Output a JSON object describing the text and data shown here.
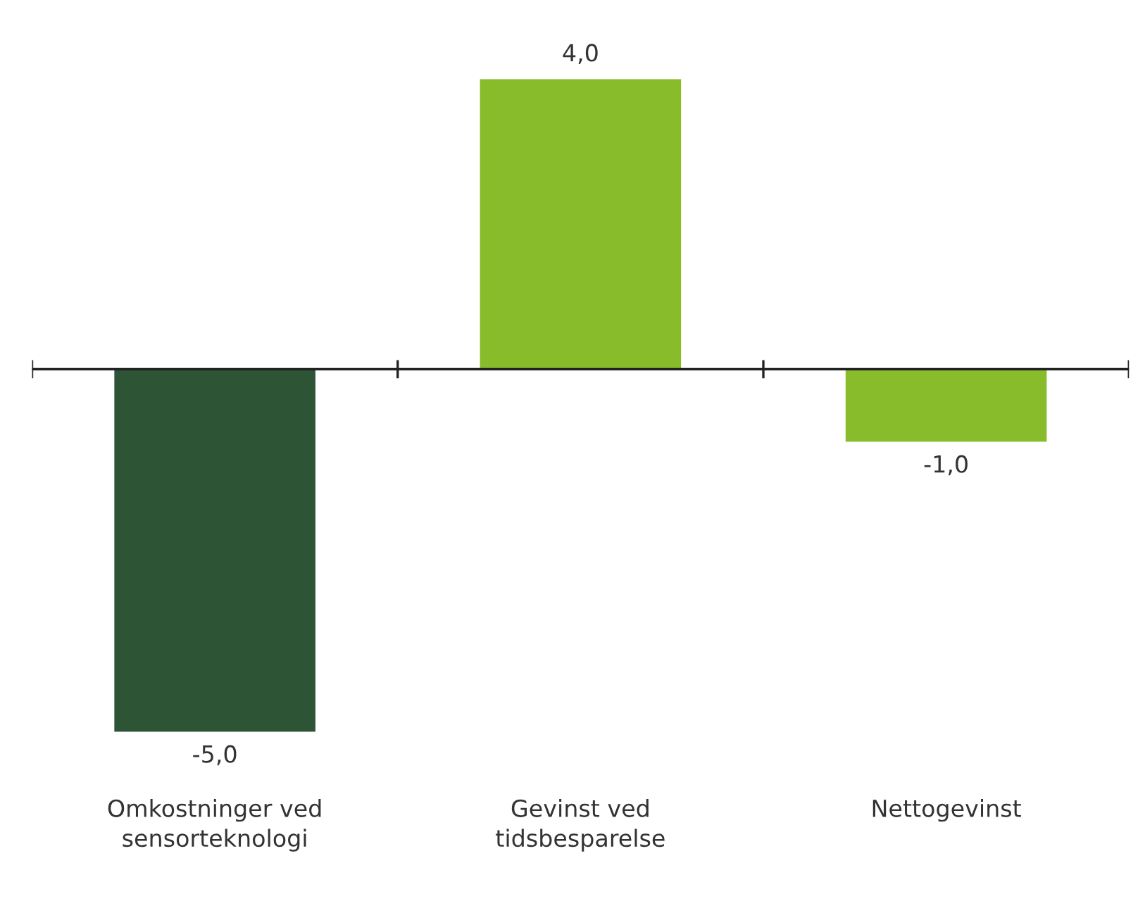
{
  "chart_data": {
    "type": "bar",
    "categories": [
      "Omkostninger ved\nsensorteknologi",
      "Gevinst ved\ntidsbesparelse",
      "Nettogevinst"
    ],
    "values": [
      -5.0,
      4.0,
      -1.0
    ],
    "colors": [
      "#2d5434",
      "#88bc2a",
      "#88bc2a"
    ],
    "value_labels": [
      "-5,0",
      "4,0",
      "-1,0"
    ],
    "grid": false,
    "legend": false
  }
}
